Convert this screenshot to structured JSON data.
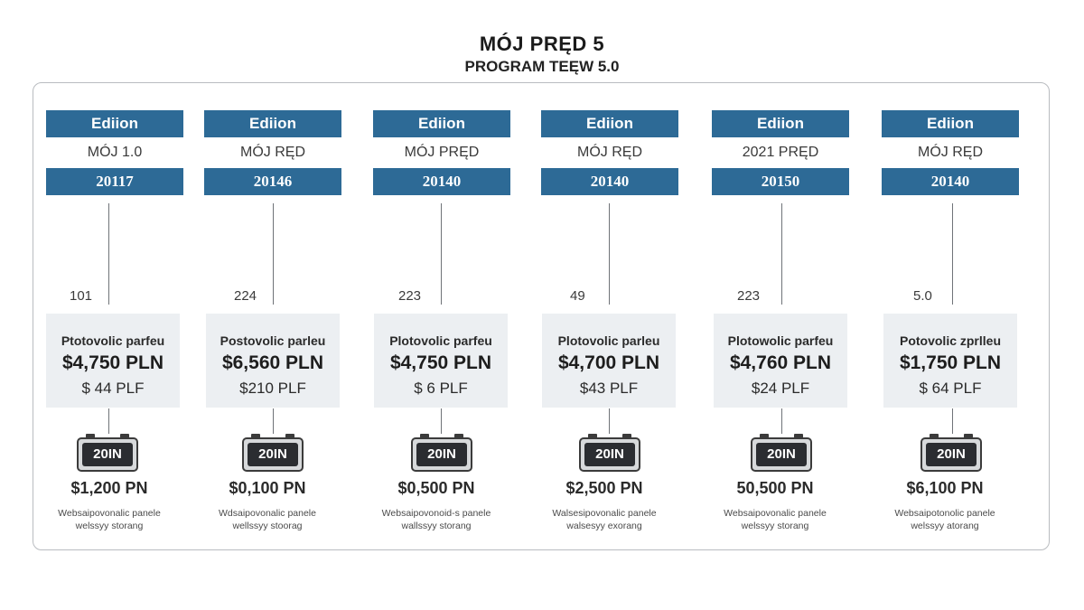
{
  "title": "MÓJ PRĘD 5",
  "subtitle": "PROGRAM TEĘW 5.0",
  "columns": [
    {
      "edition_label": "Ediion",
      "name": "MÓJ 1.0",
      "year": "20117",
      "count": "101",
      "panel_label": "Ptotovolic parfeu",
      "panel_price": "$4,750 PLN",
      "panel_sub": "$ 44 PLF",
      "battery_label": "20IN",
      "storage_price": "$1,200 PN",
      "storage_label_1": "Websaipovonalic panele",
      "storage_label_2": "welssyy storang"
    },
    {
      "edition_label": "Ediion",
      "name": "MÓJ RĘD",
      "year": "20146",
      "count": "224",
      "panel_label": "Postovolic parleu",
      "panel_price": "$6,560 PLN",
      "panel_sub": "$210 PLF",
      "battery_label": "20IN",
      "storage_price": "$0,100 PN",
      "storage_label_1": "Wdsaipovonalic panele",
      "storage_label_2": "wellssyy stoorag"
    },
    {
      "edition_label": "Ediion",
      "name": "MÓJ PRĘD",
      "year": "20140",
      "count": "223",
      "panel_label": "Plotovolic parfeu",
      "panel_price": "$4,750 PLN",
      "panel_sub": "$ 6 PLF",
      "battery_label": "20IN",
      "storage_price": "$0,500 PN",
      "storage_label_1": "Websaipovonoid-s panele",
      "storage_label_2": "wallssyy storang"
    },
    {
      "edition_label": "Ediion",
      "name": "MÓJ RĘD",
      "year": "20140",
      "count": "49",
      "panel_label": "Plotovolic parleu",
      "panel_price": "$4,700 PLN",
      "panel_sub": "$43 PLF",
      "battery_label": "20IN",
      "storage_price": "$2,500 PN",
      "storage_label_1": "Walsesipovonalic panele",
      "storage_label_2": "walsesyy exorang"
    },
    {
      "edition_label": "Ediion",
      "name": "2021 PRĘD",
      "year": "20150",
      "count": "223",
      "panel_label": "Plotowolic parfeu",
      "panel_price": "$4,760 PLN",
      "panel_sub": "$24 PLF",
      "battery_label": "20IN",
      "storage_price": "50,500 PN",
      "storage_label_1": "Websaipovonalic panele",
      "storage_label_2": "welssyy storang"
    },
    {
      "edition_label": "Ediion",
      "name": "MÓJ RĘD",
      "year": "20140",
      "count": "5.0",
      "panel_label": "Potovolic zprlleu",
      "panel_price": "$1,750 PLN",
      "panel_sub": "$ 64 PLF",
      "battery_label": "20IN",
      "storage_price": "$6,100 PN",
      "storage_label_1": "Websaipotonolic panele",
      "storage_label_2": "welssyy atorang"
    }
  ]
}
